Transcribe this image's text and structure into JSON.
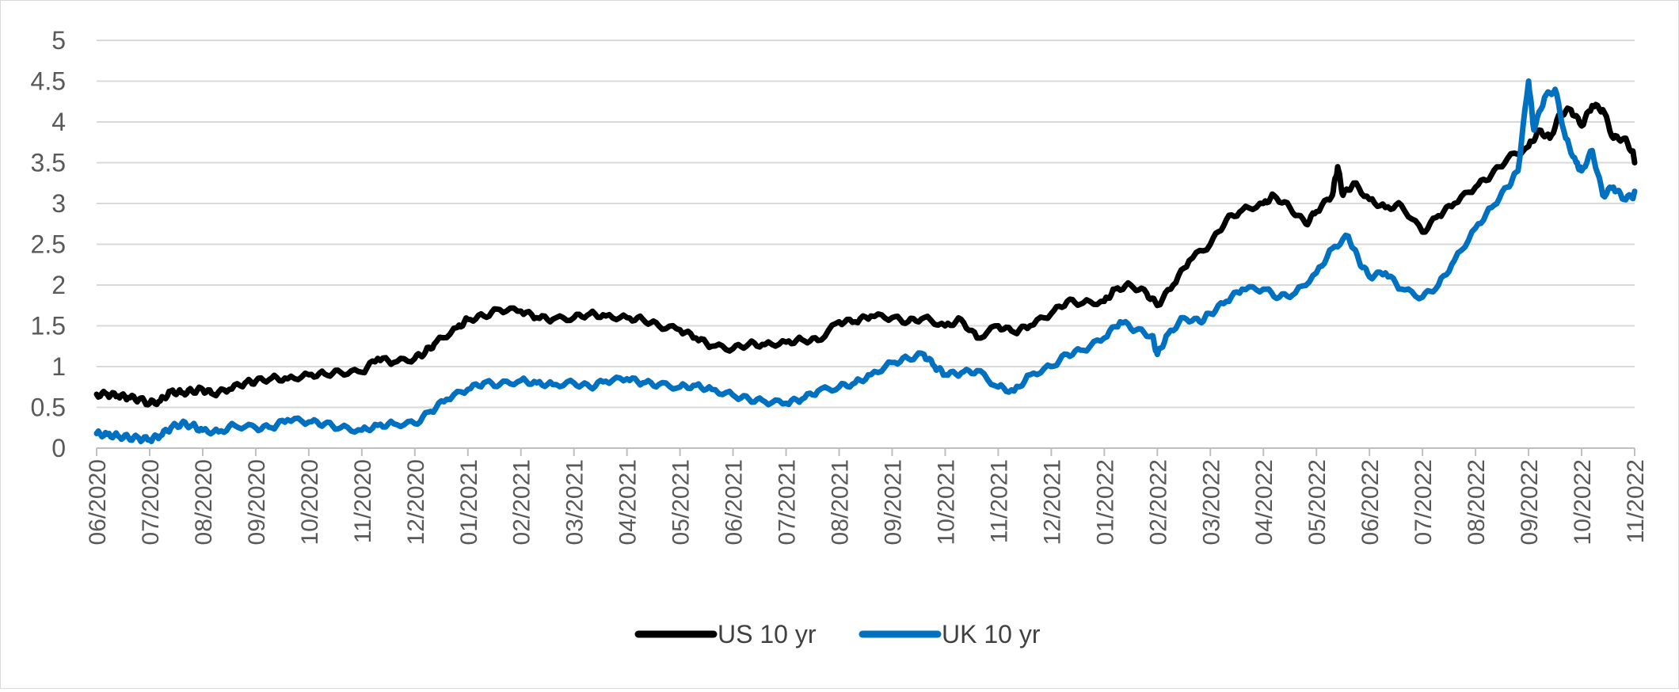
{
  "chart_data": {
    "type": "line",
    "title": "",
    "xlabel": "",
    "ylabel": "",
    "ylim": [
      0,
      5
    ],
    "yticks": [
      "0",
      "0.5",
      "1",
      "1.5",
      "2",
      "2.5",
      "3",
      "3.5",
      "4",
      "4.5",
      "5"
    ],
    "xticks": [
      "06/2020",
      "07/2020",
      "08/2020",
      "09/2020",
      "10/2020",
      "11/2020",
      "12/2020",
      "01/2021",
      "02/2021",
      "03/2021",
      "04/2021",
      "05/2021",
      "06/2021",
      "07/2021",
      "08/2021",
      "09/2021",
      "10/2021",
      "11/2021",
      "12/2021",
      "01/2022",
      "02/2022",
      "03/2022",
      "04/2022",
      "05/2022",
      "06/2022",
      "07/2022",
      "08/2022",
      "09/2022",
      "10/2022",
      "11/2022"
    ],
    "grid": true,
    "legend_position": "bottom",
    "series": [
      {
        "name": "US 10 yr",
        "color": "#000000",
        "x": [
          0,
          0.2,
          0.4,
          0.6,
          0.8,
          1.0,
          1.2,
          1.4,
          1.6,
          1.8,
          2.0,
          2.2,
          2.5,
          2.8,
          3.0,
          3.3,
          3.6,
          4.0,
          4.3,
          4.6,
          5.0,
          5.3,
          5.6,
          6.0,
          6.2,
          6.4,
          6.8,
          7.0,
          7.3,
          7.6,
          8.0,
          8.3,
          8.6,
          9.0,
          9.3,
          9.6,
          10.0,
          10.3,
          10.6,
          11.0,
          11.3,
          11.6,
          12.0,
          12.3,
          12.6,
          13.0,
          13.3,
          13.6,
          14.0,
          14.3,
          14.6,
          15.0,
          15.3,
          15.6,
          16.0,
          16.3,
          16.6,
          17.0,
          17.3,
          17.6,
          18.0,
          18.3,
          18.6,
          19.0,
          19.2,
          19.5,
          19.8,
          20.0,
          20.3,
          20.6,
          21.0,
          21.3,
          21.6,
          22.0,
          22.2,
          22.5,
          22.8,
          23.0,
          23.3,
          23.4,
          23.5,
          23.7,
          24.0,
          24.3,
          24.6,
          25.0,
          25.3,
          25.6,
          26.0,
          26.3,
          26.6,
          27.0,
          27.2,
          27.4,
          27.6,
          27.8,
          28.0,
          28.2,
          28.4,
          28.6,
          28.8,
          29.0
        ],
        "values": [
          0.66,
          0.66,
          0.64,
          0.62,
          0.6,
          0.55,
          0.58,
          0.7,
          0.68,
          0.7,
          0.72,
          0.66,
          0.72,
          0.8,
          0.82,
          0.86,
          0.85,
          0.9,
          0.91,
          0.93,
          0.93,
          1.1,
          1.05,
          1.1,
          1.18,
          1.3,
          1.48,
          1.58,
          1.62,
          1.7,
          1.68,
          1.6,
          1.58,
          1.6,
          1.65,
          1.62,
          1.6,
          1.58,
          1.5,
          1.45,
          1.35,
          1.25,
          1.22,
          1.28,
          1.27,
          1.3,
          1.33,
          1.32,
          1.55,
          1.55,
          1.62,
          1.6,
          1.55,
          1.6,
          1.5,
          1.58,
          1.35,
          1.5,
          1.42,
          1.5,
          1.65,
          1.8,
          1.78,
          1.8,
          1.95,
          2.0,
          1.9,
          1.75,
          2.0,
          2.3,
          2.5,
          2.8,
          2.92,
          3.0,
          3.1,
          2.95,
          2.75,
          2.9,
          3.1,
          3.45,
          3.1,
          3.25,
          3.05,
          2.95,
          2.98,
          2.65,
          2.85,
          3.0,
          3.2,
          3.35,
          3.55,
          3.7,
          3.9,
          3.8,
          4.1,
          4.15,
          3.95,
          4.2,
          4.15,
          3.8,
          3.8,
          3.6
        ],
        "end_value": 3.5
      },
      {
        "name": "UK 10 yr",
        "color": "#0070c0",
        "x": [
          0,
          0.2,
          0.4,
          0.6,
          0.8,
          1.0,
          1.2,
          1.4,
          1.6,
          1.8,
          2.0,
          2.3,
          2.6,
          3.0,
          3.3,
          3.6,
          4.0,
          4.3,
          4.6,
          5.0,
          5.3,
          5.6,
          6.0,
          6.3,
          6.6,
          7.0,
          7.3,
          7.6,
          8.0,
          8.3,
          8.6,
          9.0,
          9.3,
          9.6,
          10.0,
          10.3,
          10.6,
          11.0,
          11.3,
          11.6,
          12.0,
          12.3,
          12.6,
          13.0,
          13.3,
          13.6,
          14.0,
          14.3,
          14.6,
          15.0,
          15.3,
          15.6,
          15.8,
          16.0,
          16.3,
          16.6,
          17.0,
          17.3,
          17.6,
          18.0,
          18.3,
          18.6,
          19.0,
          19.3,
          19.6,
          19.9,
          20.0,
          20.2,
          20.5,
          20.8,
          21.0,
          21.3,
          21.6,
          22.0,
          22.3,
          22.6,
          23.0,
          23.3,
          23.6,
          23.8,
          24.0,
          24.3,
          24.6,
          25.0,
          25.3,
          25.6,
          26.0,
          26.3,
          26.6,
          26.8,
          27.0,
          27.1,
          27.3,
          27.5,
          27.7,
          27.9,
          28.0,
          28.2,
          28.4,
          28.6,
          28.8,
          29.0
        ],
        "values": [
          0.18,
          0.17,
          0.15,
          0.13,
          0.12,
          0.1,
          0.15,
          0.25,
          0.3,
          0.28,
          0.22,
          0.2,
          0.28,
          0.25,
          0.25,
          0.35,
          0.32,
          0.3,
          0.25,
          0.22,
          0.28,
          0.3,
          0.3,
          0.45,
          0.6,
          0.72,
          0.8,
          0.78,
          0.83,
          0.8,
          0.78,
          0.8,
          0.75,
          0.82,
          0.85,
          0.8,
          0.78,
          0.75,
          0.77,
          0.72,
          0.65,
          0.6,
          0.57,
          0.55,
          0.6,
          0.7,
          0.75,
          0.8,
          0.9,
          1.05,
          1.1,
          1.15,
          1.0,
          0.9,
          0.92,
          0.95,
          0.75,
          0.7,
          0.9,
          1.0,
          1.15,
          1.2,
          1.35,
          1.55,
          1.45,
          1.38,
          1.15,
          1.4,
          1.6,
          1.55,
          1.65,
          1.8,
          1.95,
          1.95,
          1.85,
          1.9,
          2.15,
          2.45,
          2.6,
          2.3,
          2.1,
          2.15,
          1.95,
          1.85,
          2.0,
          2.3,
          2.7,
          2.95,
          3.2,
          3.4,
          4.5,
          3.9,
          4.3,
          4.4,
          3.8,
          3.5,
          3.4,
          3.65,
          3.1,
          3.2,
          3.05,
          3.1
        ],
        "end_value": 3.15
      }
    ]
  }
}
